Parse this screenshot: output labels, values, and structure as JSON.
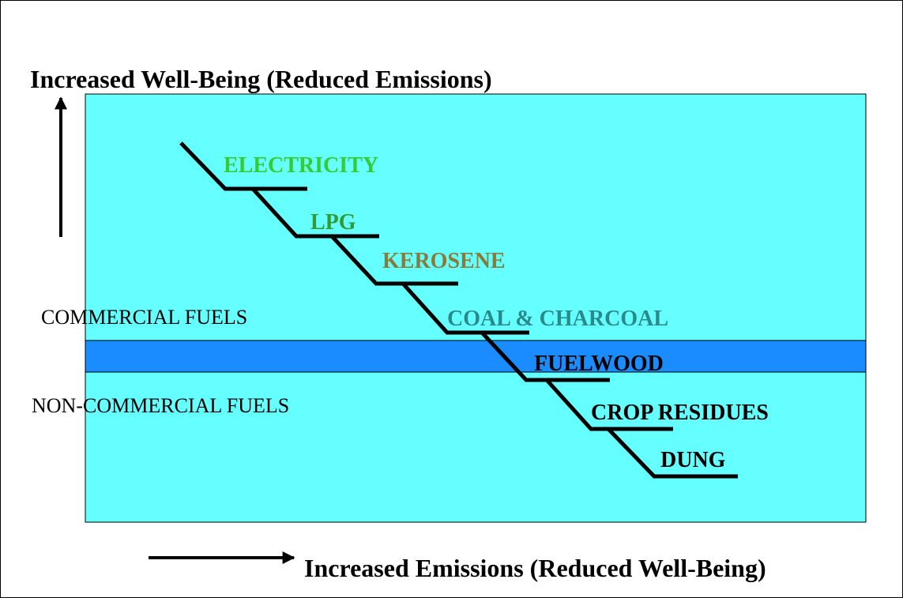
{
  "title": "Increased Well-Being (Reduced Emissions)",
  "x_label": "Increased Emissions (Reduced Well-Being)",
  "regions": [
    "COMMERCIAL FUELS",
    "NON-COMMERCIAL FUELS"
  ],
  "steps": [
    "ELECTRICITY",
    "LPG",
    "KEROSENE",
    "COAL & CHARCOAL",
    "FUELWOOD",
    "CROP RESIDUES",
    "DUNG"
  ]
}
